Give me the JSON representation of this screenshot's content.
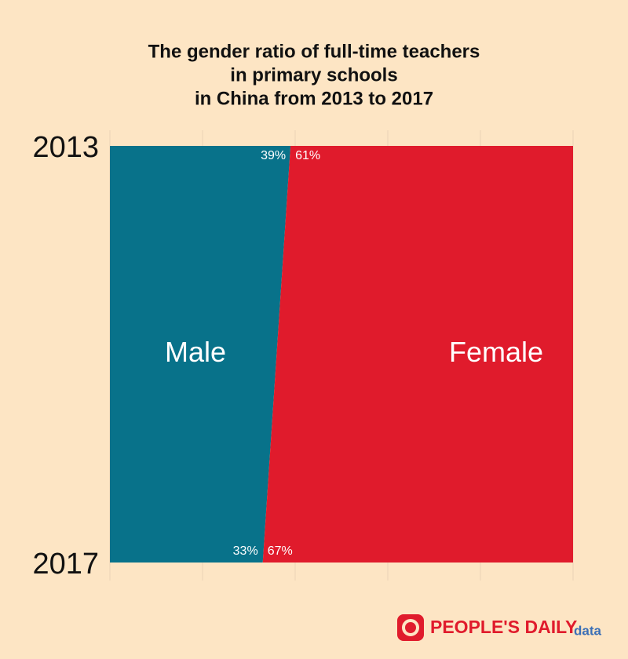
{
  "chart_data": {
    "type": "stacked-area",
    "title": [
      "The gender ratio of full-time teachers",
      "in primary schools",
      "in China from 2013 to 2017"
    ],
    "categories": [
      "2013",
      "2017"
    ],
    "series": [
      {
        "name": "Male",
        "color": "#08728a",
        "values": [
          39,
          33
        ],
        "value_labels": [
          "39%",
          "33%"
        ]
      },
      {
        "name": "Female",
        "color": "#e01b2c",
        "values": [
          61,
          67
        ],
        "value_labels": [
          "61%",
          "67%"
        ]
      }
    ],
    "xlim": [
      0,
      100
    ],
    "xticks": [
      0,
      20,
      40,
      60,
      80,
      100
    ],
    "grid": true
  },
  "logo": {
    "text": "PEOPLE'S DAILY",
    "suffix": "data"
  }
}
